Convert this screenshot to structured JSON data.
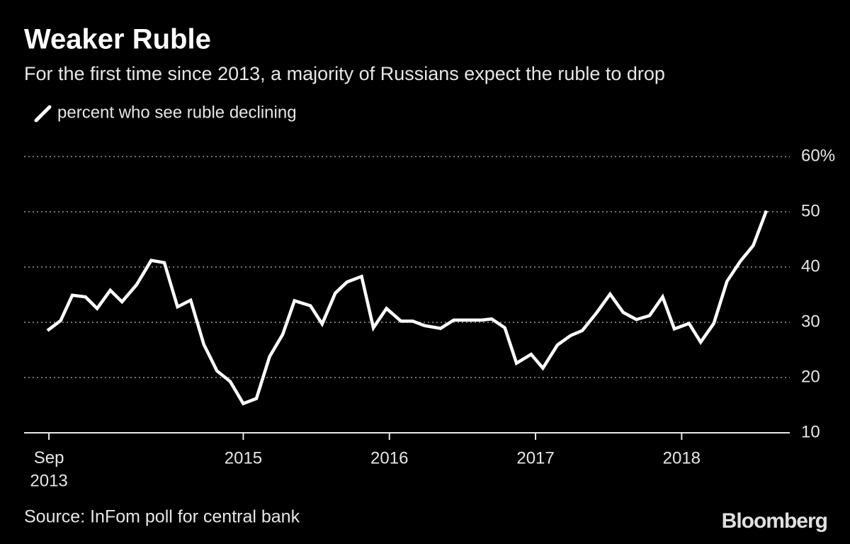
{
  "chart_data": {
    "type": "line",
    "title": "Weaker Ruble",
    "subtitle": "For the first time since 2013, a majority of Russians expect the ruble to drop",
    "source": "Source: InFom poll for central bank",
    "brand": "Bloomberg",
    "x": [
      2013.66,
      2013.75,
      2013.83,
      2013.92,
      2014.0,
      2014.09,
      2014.17,
      2014.27,
      2014.37,
      2014.46,
      2014.55,
      2014.64,
      2014.73,
      2014.82,
      2014.91,
      2015.0,
      2015.09,
      2015.18,
      2015.27,
      2015.35,
      2015.46,
      2015.54,
      2015.63,
      2015.71,
      2015.81,
      2015.89,
      2015.98,
      2016.08,
      2016.16,
      2016.24,
      2016.35,
      2016.44,
      2016.54,
      2016.63,
      2016.7,
      2016.79,
      2016.87,
      2016.97,
      2017.05,
      2017.15,
      2017.24,
      2017.32,
      2017.42,
      2017.51,
      2017.6,
      2017.69,
      2017.78,
      2017.87,
      2017.95,
      2018.05,
      2018.13,
      2018.22,
      2018.31,
      2018.4,
      2018.49,
      2018.58
    ],
    "series": [
      {
        "name": "percent who see ruble declining",
        "color": "#ffffff",
        "values": [
          28.5,
          30.3,
          34.9,
          34.6,
          32.5,
          35.8,
          33.7,
          36.8,
          41.2,
          40.8,
          32.8,
          34.0,
          26.0,
          21.2,
          19.3,
          15.3,
          16.2,
          23.8,
          27.8,
          33.9,
          33.0,
          29.7,
          35.3,
          37.3,
          38.3,
          29.0,
          32.5,
          30.2,
          30.2,
          29.4,
          28.9,
          30.4,
          30.4,
          30.4,
          30.6,
          29.0,
          22.6,
          24.2,
          21.7,
          25.9,
          27.6,
          28.5,
          31.8,
          35.1,
          31.8,
          30.5,
          31.2,
          34.6,
          28.8,
          29.8,
          26.4,
          29.8,
          37.4,
          41.0,
          43.9,
          50.2
        ]
      }
    ],
    "xlim": [
      2013.5,
      2018.74
    ],
    "xticks": [
      {
        "value": 2013.67,
        "label": "Sep\n2013"
      },
      2015,
      2016,
      2017,
      2018
    ],
    "ylim": [
      10,
      60
    ],
    "yticks": [
      10,
      20,
      30,
      40,
      50,
      {
        "value": 60,
        "label": "60%"
      }
    ],
    "grid": true
  }
}
